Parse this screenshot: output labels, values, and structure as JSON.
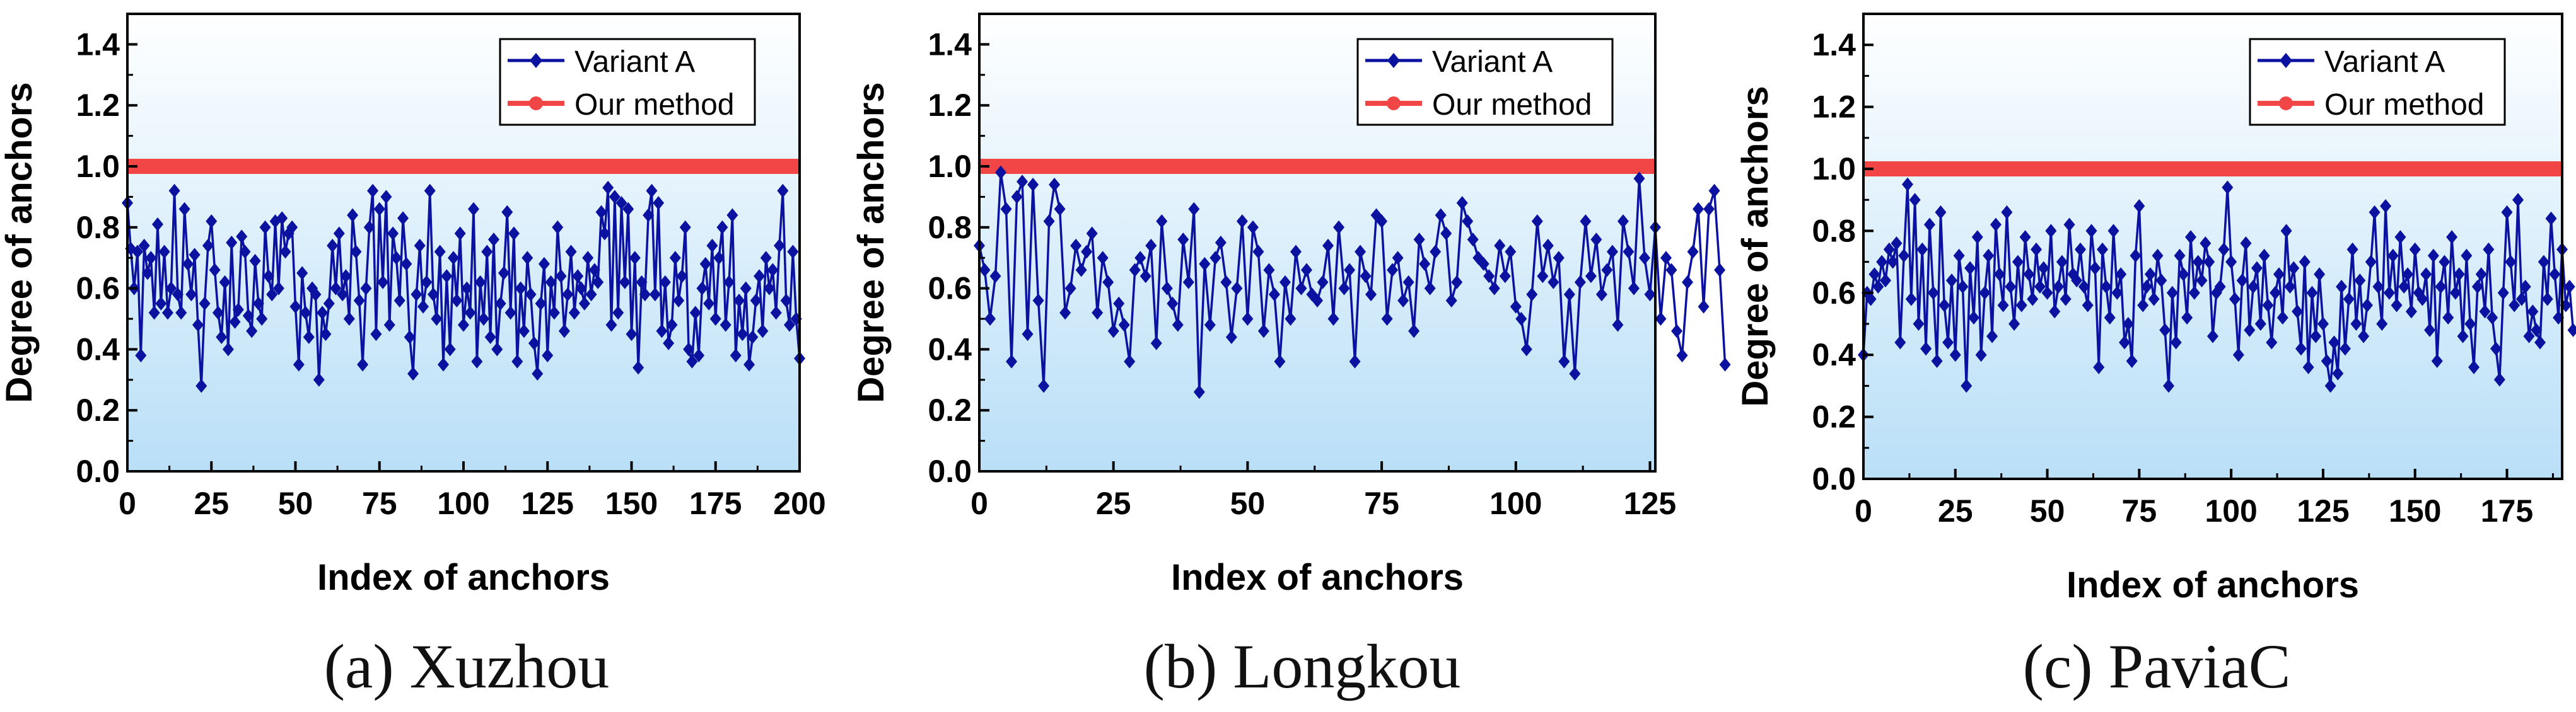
{
  "legend": {
    "variant_label": "Variant A",
    "ours_label": "Our method"
  },
  "colors": {
    "variant": "#0b12a0",
    "ours": "#f24545",
    "bg_top": "#ffffff",
    "bg_bottom": "#b9dff7"
  },
  "panels": [
    {
      "caption": "(a) Xuzhou"
    },
    {
      "caption": "(b) Longkou"
    },
    {
      "caption": "(c) PaviaC"
    }
  ],
  "chart_data": [
    {
      "type": "line",
      "xlabel": "Index of anchors",
      "ylabel": "Degree of anchors",
      "xlim": [
        0,
        200
      ],
      "ylim": [
        0,
        1.5
      ],
      "xticks": [
        0,
        25,
        50,
        75,
        100,
        125,
        150,
        175,
        200
      ],
      "yticks": [
        0.0,
        0.2,
        0.4,
        0.6,
        0.8,
        1.0,
        1.2,
        1.4
      ],
      "legend_position": "top-right",
      "grid": false,
      "series": [
        {
          "name": "Variant A",
          "marker": "diamond",
          "x_start": 0,
          "x_step": 1,
          "values": [
            0.88,
            0.73,
            0.6,
            0.72,
            0.38,
            0.74,
            0.65,
            0.7,
            0.52,
            0.81,
            0.55,
            0.72,
            0.52,
            0.6,
            0.92,
            0.58,
            0.52,
            0.86,
            0.68,
            0.58,
            0.71,
            0.48,
            0.28,
            0.55,
            0.74,
            0.82,
            0.66,
            0.52,
            0.44,
            0.62,
            0.4,
            0.75,
            0.49,
            0.53,
            0.77,
            0.72,
            0.51,
            0.46,
            0.69,
            0.55,
            0.5,
            0.8,
            0.64,
            0.58,
            0.82,
            0.6,
            0.83,
            0.72,
            0.78,
            0.8,
            0.54,
            0.35,
            0.65,
            0.52,
            0.44,
            0.6,
            0.58,
            0.3,
            0.52,
            0.45,
            0.55,
            0.74,
            0.6,
            0.78,
            0.58,
            0.64,
            0.5,
            0.84,
            0.72,
            0.56,
            0.35,
            0.6,
            0.8,
            0.92,
            0.45,
            0.86,
            0.62,
            0.9,
            0.48,
            0.78,
            0.7,
            0.56,
            0.83,
            0.68,
            0.44,
            0.32,
            0.58,
            0.74,
            0.54,
            0.62,
            0.92,
            0.58,
            0.5,
            0.72,
            0.35,
            0.64,
            0.4,
            0.7,
            0.56,
            0.78,
            0.48,
            0.6,
            0.52,
            0.86,
            0.36,
            0.62,
            0.5,
            0.72,
            0.44,
            0.76,
            0.4,
            0.55,
            0.65,
            0.85,
            0.52,
            0.78,
            0.36,
            0.6,
            0.46,
            0.7,
            0.58,
            0.42,
            0.32,
            0.55,
            0.68,
            0.38,
            0.62,
            0.52,
            0.8,
            0.64,
            0.46,
            0.58,
            0.72,
            0.52,
            0.64,
            0.6,
            0.55,
            0.7,
            0.58,
            0.66,
            0.62,
            0.85,
            0.78,
            0.93,
            0.48,
            0.9,
            0.52,
            0.88,
            0.62,
            0.86,
            0.45,
            0.7,
            0.34,
            0.62,
            0.58,
            0.84,
            0.92,
            0.58,
            0.88,
            0.46,
            0.62,
            0.42,
            0.48,
            0.7,
            0.56,
            0.64,
            0.8,
            0.4,
            0.36,
            0.52,
            0.38,
            0.6,
            0.68,
            0.55,
            0.74,
            0.5,
            0.7,
            0.8,
            0.48,
            0.62,
            0.84,
            0.38,
            0.56,
            0.45,
            0.6,
            0.35,
            0.44,
            0.56,
            0.64,
            0.46,
            0.7,
            0.6,
            0.66,
            0.52,
            0.74,
            0.92,
            0.56,
            0.48,
            0.72,
            0.5,
            0.37
          ]
        },
        {
          "name": "Our method",
          "marker": "circle",
          "values": [
            1.0,
            1.0
          ],
          "x": [
            0,
            200
          ]
        }
      ]
    },
    {
      "type": "line",
      "xlabel": "Index of anchors",
      "ylabel": "Degree of anchors",
      "xlim": [
        0,
        126
      ],
      "ylim": [
        0,
        1.5
      ],
      "xticks": [
        0,
        25,
        50,
        75,
        100,
        125
      ],
      "yticks": [
        0.0,
        0.2,
        0.4,
        0.6,
        0.8,
        1.0,
        1.2,
        1.4
      ],
      "legend_position": "top-right",
      "grid": false,
      "series": [
        {
          "name": "Variant A",
          "marker": "diamond",
          "x_start": 0,
          "x_step": 1,
          "values": [
            0.74,
            0.66,
            0.5,
            0.64,
            0.98,
            0.86,
            0.36,
            0.9,
            0.95,
            0.45,
            0.94,
            0.56,
            0.28,
            0.82,
            0.94,
            0.86,
            0.52,
            0.6,
            0.74,
            0.66,
            0.72,
            0.78,
            0.52,
            0.7,
            0.62,
            0.46,
            0.55,
            0.48,
            0.36,
            0.66,
            0.7,
            0.64,
            0.74,
            0.42,
            0.82,
            0.6,
            0.55,
            0.48,
            0.76,
            0.62,
            0.86,
            0.26,
            0.68,
            0.48,
            0.7,
            0.75,
            0.62,
            0.44,
            0.6,
            0.82,
            0.5,
            0.8,
            0.72,
            0.46,
            0.66,
            0.58,
            0.36,
            0.62,
            0.5,
            0.72,
            0.6,
            0.66,
            0.58,
            0.56,
            0.62,
            0.74,
            0.5,
            0.8,
            0.6,
            0.66,
            0.36,
            0.72,
            0.64,
            0.58,
            0.84,
            0.82,
            0.5,
            0.66,
            0.7,
            0.56,
            0.62,
            0.46,
            0.76,
            0.68,
            0.6,
            0.72,
            0.84,
            0.78,
            0.56,
            0.62,
            0.88,
            0.82,
            0.76,
            0.7,
            0.68,
            0.64,
            0.6,
            0.74,
            0.64,
            0.72,
            0.54,
            0.5,
            0.4,
            0.58,
            0.82,
            0.64,
            0.74,
            0.62,
            0.7,
            0.36,
            0.58,
            0.32,
            0.62,
            0.82,
            0.64,
            0.76,
            0.58,
            0.66,
            0.72,
            0.48,
            0.82,
            0.72,
            0.6,
            0.96,
            0.7,
            0.58,
            0.8,
            0.5,
            0.7,
            0.66,
            0.46,
            0.38,
            0.62,
            0.72,
            0.86,
            0.54,
            0.86,
            0.92,
            0.66,
            0.35
          ]
        },
        {
          "name": "Our method",
          "marker": "circle",
          "values": [
            1.0,
            1.0
          ],
          "x": [
            0,
            126
          ]
        }
      ]
    },
    {
      "type": "line",
      "xlabel": "Index of anchors",
      "ylabel": "Degree of anchors",
      "xlim": [
        0,
        190
      ],
      "ylim": [
        0,
        1.5
      ],
      "xticks": [
        0,
        25,
        50,
        75,
        100,
        125,
        150,
        175
      ],
      "yticks": [
        0.0,
        0.2,
        0.4,
        0.6,
        0.8,
        1.0,
        1.2,
        1.4
      ],
      "legend_position": "top-right",
      "grid": false,
      "series": [
        {
          "name": "Variant A",
          "marker": "diamond",
          "x_start": 0,
          "x_step": 1,
          "values": [
            0.4,
            0.6,
            0.58,
            0.66,
            0.62,
            0.7,
            0.64,
            0.74,
            0.7,
            0.76,
            0.44,
            0.72,
            0.95,
            0.58,
            0.9,
            0.5,
            0.74,
            0.42,
            0.82,
            0.6,
            0.38,
            0.86,
            0.56,
            0.44,
            0.64,
            0.4,
            0.72,
            0.62,
            0.3,
            0.68,
            0.52,
            0.78,
            0.4,
            0.6,
            0.72,
            0.46,
            0.82,
            0.66,
            0.56,
            0.86,
            0.62,
            0.5,
            0.7,
            0.56,
            0.78,
            0.66,
            0.58,
            0.74,
            0.62,
            0.68,
            0.6,
            0.8,
            0.54,
            0.62,
            0.7,
            0.58,
            0.82,
            0.66,
            0.64,
            0.74,
            0.62,
            0.56,
            0.8,
            0.68,
            0.36,
            0.74,
            0.62,
            0.52,
            0.8,
            0.6,
            0.66,
            0.44,
            0.5,
            0.38,
            0.72,
            0.88,
            0.56,
            0.62,
            0.66,
            0.58,
            0.72,
            0.64,
            0.48,
            0.3,
            0.6,
            0.44,
            0.72,
            0.66,
            0.52,
            0.78,
            0.6,
            0.7,
            0.64,
            0.76,
            0.7,
            0.46,
            0.6,
            0.62,
            0.74,
            0.94,
            0.7,
            0.58,
            0.4,
            0.64,
            0.76,
            0.48,
            0.62,
            0.68,
            0.5,
            0.72,
            0.56,
            0.44,
            0.6,
            0.66,
            0.52,
            0.8,
            0.62,
            0.68,
            0.54,
            0.42,
            0.7,
            0.36,
            0.6,
            0.46,
            0.66,
            0.5,
            0.38,
            0.3,
            0.44,
            0.34,
            0.62,
            0.42,
            0.58,
            0.74,
            0.5,
            0.64,
            0.46,
            0.56,
            0.7,
            0.86,
            0.62,
            0.5,
            0.88,
            0.6,
            0.72,
            0.56,
            0.78,
            0.62,
            0.66,
            0.54,
            0.74,
            0.6,
            0.58,
            0.66,
            0.48,
            0.72,
            0.38,
            0.62,
            0.7,
            0.52,
            0.78,
            0.6,
            0.66,
            0.46,
            0.72,
            0.5,
            0.36,
            0.62,
            0.66,
            0.54,
            0.74,
            0.52,
            0.42,
            0.32,
            0.6,
            0.86,
            0.7,
            0.56,
            0.9,
            0.58,
            0.62,
            0.46,
            0.54,
            0.48,
            0.44,
            0.7,
            0.58,
            0.84,
            0.66,
            0.52,
            0.74,
            0.56,
            0.62,
            0.48
          ]
        },
        {
          "name": "Our method",
          "marker": "circle",
          "values": [
            1.0,
            1.0
          ],
          "x": [
            0,
            190
          ]
        }
      ]
    }
  ]
}
